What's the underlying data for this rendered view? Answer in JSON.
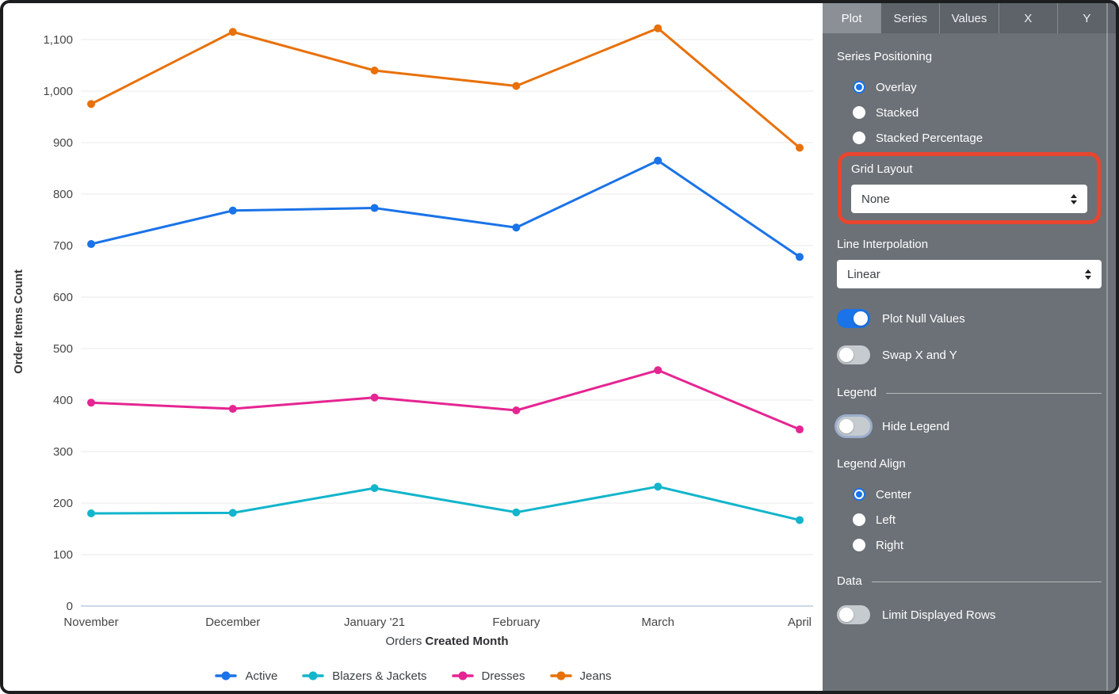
{
  "chart_data": {
    "type": "line",
    "categories": [
      "November",
      "December",
      "January '21",
      "February",
      "March",
      "April"
    ],
    "series": [
      {
        "name": "Active",
        "color": "#1A73E8",
        "values": [
          703,
          768,
          773,
          735,
          865,
          678
        ]
      },
      {
        "name": "Blazers & Jackets",
        "color": "#12B5CB",
        "values": [
          180,
          181,
          229,
          182,
          232,
          167
        ]
      },
      {
        "name": "Dresses",
        "color": "#E52592",
        "values": [
          395,
          383,
          405,
          380,
          458,
          343
        ]
      },
      {
        "name": "Jeans",
        "color": "#E8710A",
        "values": [
          975,
          1115,
          1040,
          1010,
          1122,
          890
        ]
      }
    ],
    "title": "",
    "xlabel": "Orders Created Month",
    "xlabel_regular_part": "Orders",
    "xlabel_bold_part": "Created Month",
    "ylabel": "Order Items Count",
    "ylim": [
      0,
      1100
    ],
    "ytick_step": 100,
    "grid": true,
    "legend_position": "bottom-center",
    "axis_text_color": "#444746",
    "gridline_color": "#e8e8e8",
    "baseline_color": "#ccd7e6"
  },
  "panel": {
    "accent_color": "#1A73E8",
    "background_color": "#6b7177",
    "tabs": [
      "Plot",
      "Series",
      "Values",
      "X",
      "Y"
    ],
    "active_tab": "Plot",
    "series_positioning": {
      "label": "Series Positioning",
      "options": [
        "Overlay",
        "Stacked",
        "Stacked Percentage"
      ],
      "selected": "Overlay"
    },
    "grid_layout": {
      "label": "Grid Layout",
      "value": "None",
      "highlighted": true,
      "highlight_color": "#e8452f"
    },
    "line_interpolation": {
      "label": "Line Interpolation",
      "value": "Linear"
    },
    "toggles": {
      "plot_null_values": {
        "label": "Plot Null Values",
        "on": true
      },
      "swap_x_y": {
        "label": "Swap X and Y",
        "on": false
      },
      "hide_legend": {
        "label": "Hide Legend",
        "on": false
      },
      "limit_displayed_rows": {
        "label": "Limit Displayed Rows",
        "on": false
      }
    },
    "legend_section_label": "Legend",
    "legend_align": {
      "label": "Legend Align",
      "options": [
        "Center",
        "Left",
        "Right"
      ],
      "selected": "Center"
    },
    "data_section_label": "Data"
  }
}
